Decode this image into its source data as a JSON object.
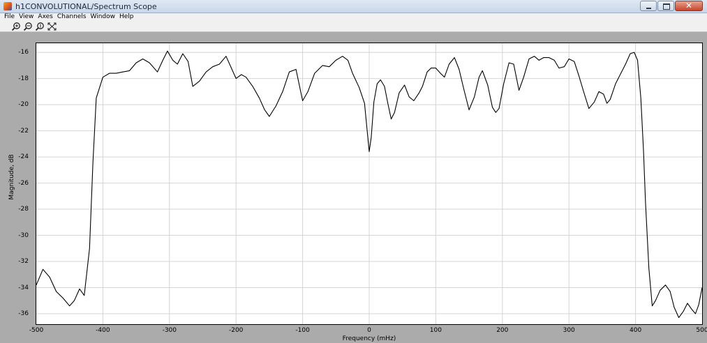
{
  "window": {
    "title": "h1CONVOLUTIONAL/Spectrum Scope",
    "controls": {
      "minimize": "minimize",
      "maximize": "maximize",
      "close": "✕"
    }
  },
  "menubar": {
    "items": [
      "File",
      "View",
      "Axes",
      "Channels",
      "Window",
      "Help"
    ]
  },
  "toolbar": {
    "tools": [
      "zoom-in-icon",
      "zoom-x-icon",
      "zoom-y-icon",
      "autoscale-icon"
    ]
  },
  "chart_data": {
    "type": "line",
    "title": "",
    "xlabel": "Frequency (mHz)",
    "ylabel": "Magnitude, dB",
    "xlim": [
      -500,
      500
    ],
    "ylim": [
      -36.8,
      -15.3
    ],
    "xticks": [
      -500,
      -400,
      -300,
      -200,
      -100,
      0,
      100,
      200,
      300,
      400,
      500
    ],
    "yticks": [
      -16,
      -18,
      -20,
      -22,
      -24,
      -26,
      -28,
      -30,
      -32,
      -34,
      -36
    ],
    "grid": true,
    "line_color": "#000000",
    "series": [
      {
        "x": [
          -500,
          -490,
          -480,
          -470,
          -460,
          -450,
          -443,
          -435,
          -428,
          -420,
          -415,
          -410,
          -400,
          -390,
          -380,
          -370,
          -360,
          -350,
          -340,
          -330,
          -318,
          -310,
          -303,
          -295,
          -288,
          -280,
          -272,
          -265,
          -255,
          -245,
          -235,
          -225,
          -215,
          -207,
          -200,
          -192,
          -185,
          -175,
          -165,
          -157,
          -150,
          -140,
          -130,
          -120,
          -110,
          -100,
          -92,
          -82,
          -70,
          -60,
          -50,
          -40,
          -32,
          -25,
          -15,
          -7,
          0,
          3,
          7,
          12,
          17,
          23,
          28,
          33,
          38,
          45,
          53,
          60,
          67,
          75,
          80,
          87,
          93,
          100,
          107,
          113,
          120,
          128,
          135,
          142,
          150,
          158,
          165,
          170,
          178,
          185,
          190,
          195,
          202,
          210,
          217,
          225,
          232,
          240,
          248,
          255,
          262,
          270,
          278,
          285,
          293,
          300,
          308,
          315,
          322,
          330,
          338,
          345,
          352,
          357,
          362,
          370,
          378,
          385,
          392,
          398,
          403,
          408,
          412,
          415,
          420,
          425,
          430,
          437,
          445,
          452,
          458,
          465,
          472,
          478,
          485,
          490,
          495,
          500
        ],
        "y": [
          -33.8,
          -32.6,
          -33.2,
          -34.3,
          -34.8,
          -35.4,
          -35.0,
          -34.1,
          -34.6,
          -31.0,
          -24.5,
          -19.5,
          -17.9,
          -17.6,
          -17.6,
          -17.5,
          -17.4,
          -16.8,
          -16.5,
          -16.8,
          -17.5,
          -16.6,
          -15.9,
          -16.6,
          -16.9,
          -16.1,
          -16.7,
          -18.6,
          -18.2,
          -17.5,
          -17.1,
          -16.9,
          -16.3,
          -17.2,
          -18.0,
          -17.7,
          -17.9,
          -18.6,
          -19.5,
          -20.4,
          -20.9,
          -20.1,
          -19.0,
          -17.5,
          -17.3,
          -19.7,
          -19.0,
          -17.6,
          -17.0,
          -17.1,
          -16.6,
          -16.3,
          -16.6,
          -17.6,
          -18.7,
          -19.9,
          -23.6,
          -22.5,
          -19.8,
          -18.4,
          -18.1,
          -18.6,
          -19.9,
          -21.1,
          -20.6,
          -19.1,
          -18.5,
          -19.4,
          -19.7,
          -19.1,
          -18.6,
          -17.5,
          -17.2,
          -17.2,
          -17.6,
          -17.9,
          -16.9,
          -16.4,
          -17.3,
          -18.8,
          -20.4,
          -19.4,
          -17.9,
          -17.4,
          -18.5,
          -20.2,
          -20.6,
          -20.3,
          -18.4,
          -16.8,
          -16.9,
          -18.9,
          -17.9,
          -16.5,
          -16.3,
          -16.6,
          -16.4,
          -16.4,
          -16.6,
          -17.2,
          -17.1,
          -16.5,
          -16.7,
          -17.8,
          -19.0,
          -20.3,
          -19.8,
          -19.0,
          -19.2,
          -19.9,
          -19.6,
          -18.4,
          -17.6,
          -16.9,
          -16.1,
          -16.0,
          -16.6,
          -19.5,
          -23.5,
          -27.5,
          -32.5,
          -35.4,
          -35.0,
          -34.2,
          -33.8,
          -34.3,
          -35.5,
          -36.3,
          -35.8,
          -35.2,
          -35.7,
          -36.0,
          -35.3,
          -34.0
        ]
      }
    ]
  }
}
